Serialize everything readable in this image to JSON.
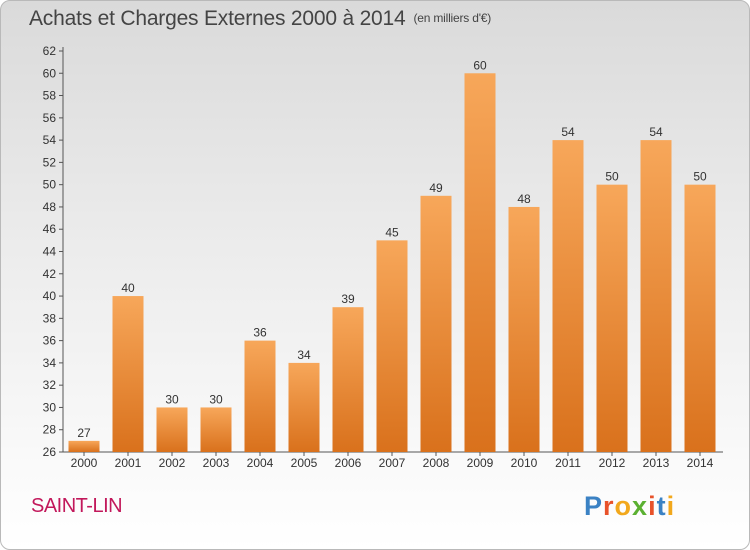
{
  "chart_data": {
    "type": "bar",
    "title": "Achats et Charges Externes 2000 à 2014",
    "subtitle": "(en milliers d'€)",
    "categories": [
      "2000",
      "2001",
      "2002",
      "2003",
      "2004",
      "2005",
      "2006",
      "2007",
      "2008",
      "2009",
      "2010",
      "2011",
      "2012",
      "2013",
      "2014"
    ],
    "values": [
      27,
      40,
      30,
      30,
      36,
      34,
      39,
      45,
      49,
      60,
      48,
      54,
      50,
      54,
      50
    ],
    "ylim": [
      26,
      62
    ],
    "ytick_step": 2,
    "grid": false,
    "bar_color": "#f0923a",
    "xlabel": "",
    "ylabel": ""
  },
  "footer": {
    "commune": "SAINT-LIN",
    "logo_letters": [
      "P",
      "r",
      "o",
      "x",
      "i",
      "t",
      "i"
    ],
    "logo_colors": [
      "#3b82c4",
      "#e8522a",
      "#f2a81c",
      "#5bb031",
      "#e8522a",
      "#3b82c4",
      "#f2a81c"
    ]
  }
}
